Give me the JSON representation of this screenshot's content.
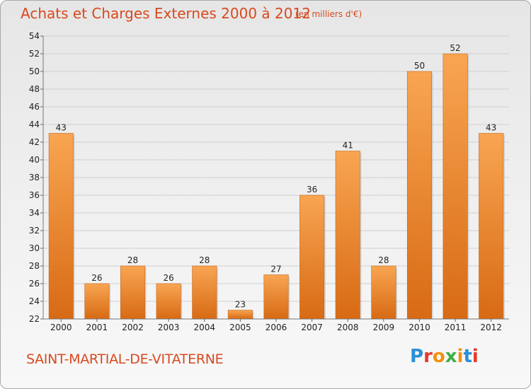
{
  "chart_data": {
    "type": "bar",
    "title": "Achats et Charges Externes 2000 à 2012",
    "subtitle": "(en milliers d'€)",
    "categories": [
      "2000",
      "2001",
      "2002",
      "2003",
      "2004",
      "2005",
      "2006",
      "2007",
      "2008",
      "2009",
      "2010",
      "2011",
      "2012"
    ],
    "values": [
      43,
      26,
      28,
      26,
      28,
      23,
      27,
      36,
      41,
      28,
      50,
      52,
      43
    ],
    "ylim": [
      22,
      54
    ],
    "yticks": [
      22,
      24,
      26,
      28,
      30,
      32,
      34,
      36,
      38,
      40,
      42,
      44,
      46,
      48,
      50,
      52,
      54
    ],
    "grid": true,
    "bar_color_top": "#f8a552",
    "bar_color_bottom": "#d86a14"
  },
  "footer": {
    "town": "SAINT-MARTIAL-DE-VITATERNE",
    "logo_text": "Proxiti",
    "logo_colors": [
      "#2a8fd8",
      "#e8392b",
      "#f29111",
      "#3fae49",
      "#f29111",
      "#2a8fd8",
      "#e8392b"
    ]
  }
}
